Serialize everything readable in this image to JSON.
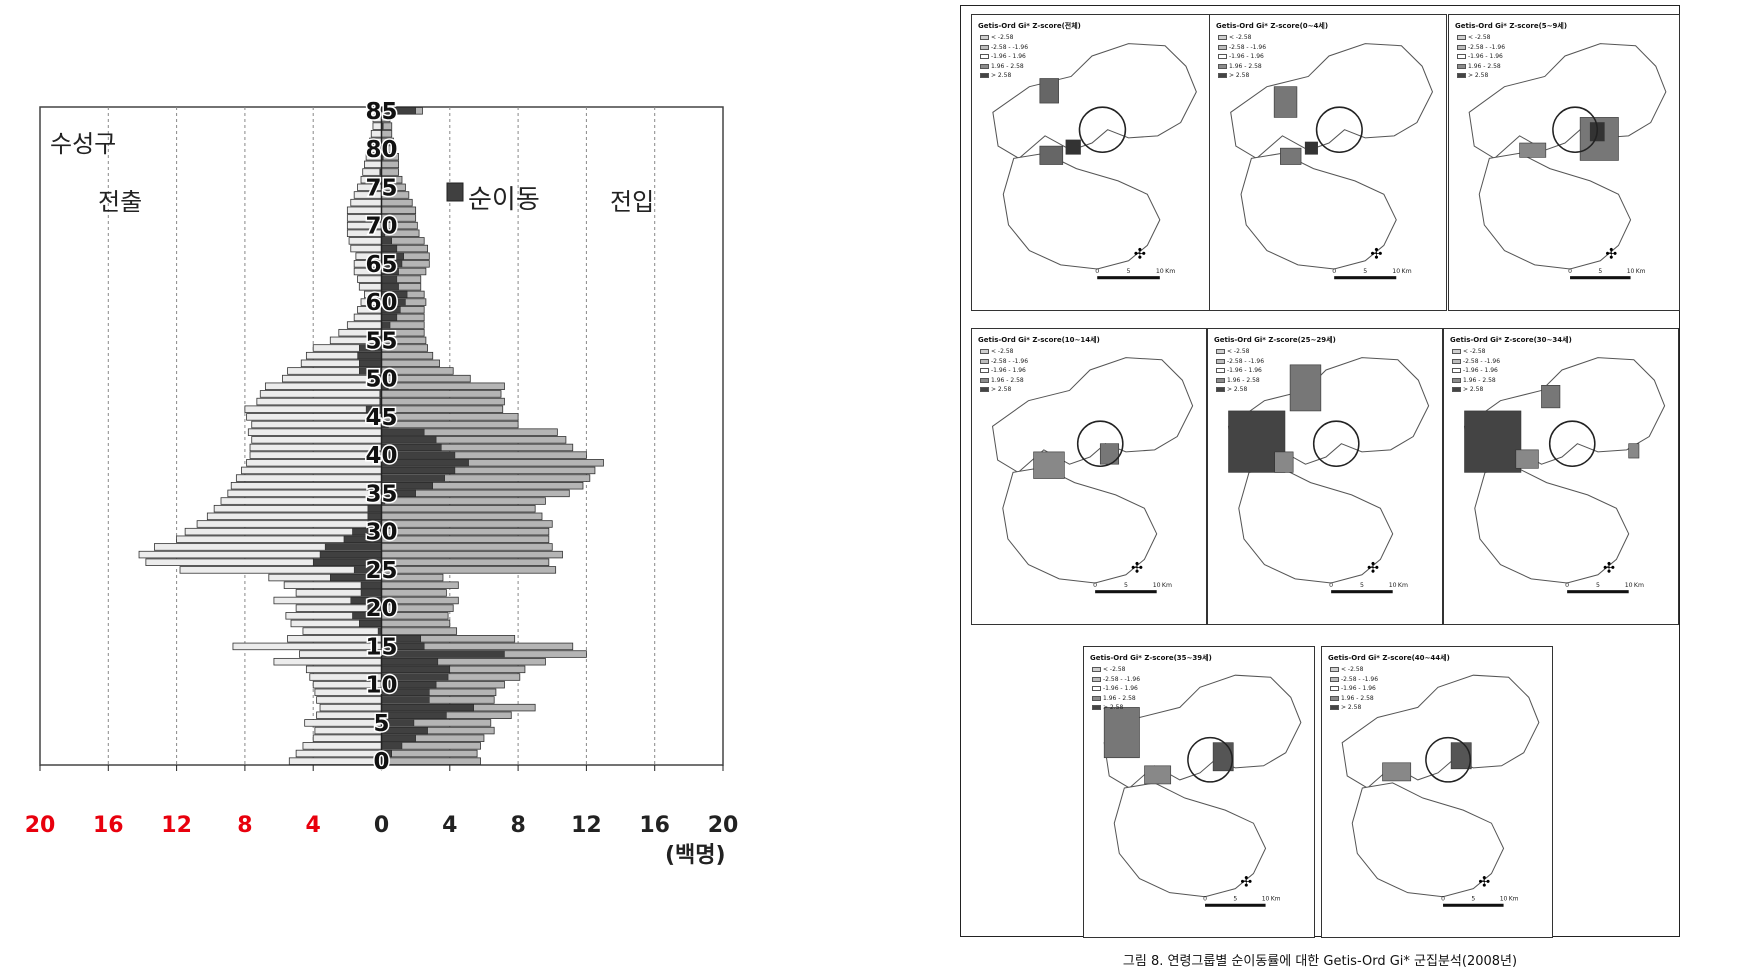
{
  "chart_data": {
    "type": "bar",
    "subtype": "population-pyramid",
    "title": "수성구",
    "left_label": "전출",
    "right_label": "전입",
    "legend": [
      "순이동"
    ],
    "unit": "(백명)",
    "xlim": [
      -20,
      20
    ],
    "x_ticks": [
      "20",
      "16",
      "12",
      "8",
      "4",
      "0",
      "4",
      "8",
      "12",
      "16",
      "20"
    ],
    "y_ticks": [
      "85",
      "80",
      "75",
      "70",
      "65",
      "60",
      "55",
      "50",
      "45",
      "40",
      "35",
      "30",
      "25",
      "20",
      "15",
      "10",
      "5",
      "0"
    ],
    "ages": [
      0,
      1,
      2,
      3,
      4,
      5,
      6,
      7,
      8,
      9,
      10,
      11,
      12,
      13,
      14,
      15,
      16,
      17,
      18,
      19,
      20,
      21,
      22,
      23,
      24,
      25,
      26,
      27,
      28,
      29,
      30,
      31,
      32,
      33,
      34,
      35,
      36,
      37,
      38,
      39,
      40,
      41,
      42,
      43,
      44,
      45,
      46,
      47,
      48,
      49,
      50,
      51,
      52,
      53,
      54,
      55,
      56,
      57,
      58,
      59,
      60,
      61,
      62,
      63,
      64,
      65,
      66,
      67,
      68,
      69,
      70,
      71,
      72,
      73,
      74,
      75,
      76,
      77,
      78,
      79,
      80,
      81,
      82,
      83,
      84,
      85
    ],
    "series": [
      {
        "name": "전출",
        "values": [
          5.4,
          5.0,
          4.6,
          4.0,
          3.9,
          4.5,
          3.8,
          3.6,
          3.8,
          3.9,
          4.0,
          4.2,
          4.4,
          6.3,
          4.8,
          8.7,
          5.5,
          4.6,
          5.3,
          5.6,
          5.0,
          6.3,
          5.0,
          5.7,
          6.6,
          11.8,
          13.8,
          14.2,
          13.3,
          12.0,
          11.5,
          10.8,
          10.2,
          9.8,
          9.4,
          9.0,
          8.8,
          8.5,
          8.2,
          7.9,
          7.7,
          7.7,
          7.6,
          7.8,
          7.6,
          7.9,
          8.0,
          7.3,
          7.1,
          6.8,
          5.8,
          5.5,
          4.7,
          4.4,
          4.0,
          3.0,
          2.5,
          2.0,
          1.6,
          1.4,
          1.2,
          1.0,
          1.3,
          1.4,
          1.6,
          1.6,
          1.5,
          1.8,
          1.9,
          2.0,
          2.0,
          2.0,
          2.0,
          1.8,
          1.6,
          1.4,
          1.2,
          1.1,
          1.0,
          0.9,
          0.8,
          0.7,
          0.6,
          0.5,
          0.5,
          0.4
        ]
      },
      {
        "name": "전입",
        "values": [
          5.8,
          5.6,
          5.8,
          6.0,
          6.6,
          6.4,
          7.6,
          9.0,
          6.6,
          6.7,
          7.2,
          8.1,
          8.4,
          9.6,
          12.0,
          11.2,
          7.8,
          4.4,
          4.0,
          3.9,
          4.2,
          4.5,
          3.8,
          4.5,
          3.6,
          10.2,
          9.8,
          10.6,
          10.0,
          9.8,
          9.8,
          10.0,
          9.4,
          9.0,
          9.6,
          11.0,
          11.8,
          12.2,
          12.5,
          13.0,
          12.0,
          11.2,
          10.8,
          10.3,
          8.0,
          8.0,
          7.1,
          7.2,
          7.0,
          7.2,
          5.2,
          4.2,
          3.4,
          3.0,
          2.7,
          2.6,
          2.5,
          2.5,
          2.5,
          2.5,
          2.6,
          2.5,
          2.3,
          2.3,
          2.6,
          2.8,
          2.8,
          2.7,
          2.5,
          2.2,
          2.1,
          2.0,
          2.0,
          1.8,
          1.6,
          1.4,
          1.2,
          1.0,
          1.0,
          1.0,
          0.8,
          0.7,
          0.6,
          0.6,
          0.5,
          2.4
        ]
      },
      {
        "name": "순이동",
        "values": [
          0.4,
          0.6,
          1.2,
          2.0,
          2.7,
          1.9,
          3.8,
          5.4,
          2.8,
          2.8,
          3.2,
          3.9,
          4.0,
          3.3,
          7.2,
          2.5,
          2.3,
          -0.2,
          -1.3,
          -1.7,
          -0.8,
          -1.8,
          -1.2,
          -1.2,
          -3.0,
          -1.6,
          -4.0,
          -3.6,
          -3.3,
          -2.2,
          -1.7,
          -0.8,
          -0.8,
          -0.8,
          0.2,
          2.0,
          3.0,
          3.7,
          4.3,
          5.1,
          4.3,
          3.5,
          3.2,
          2.5,
          0.4,
          0.1,
          -0.9,
          -0.1,
          -0.1,
          0.4,
          -0.6,
          -1.3,
          -1.3,
          -1.4,
          -1.3,
          -0.4,
          0,
          0.5,
          0.9,
          1.1,
          1.4,
          1.5,
          1.0,
          0.9,
          1.0,
          1.2,
          1.3,
          0.9,
          0.6,
          0.2,
          0.1,
          0,
          0,
          0,
          0,
          0,
          0,
          -0.1,
          0,
          0.1,
          0,
          0,
          0,
          0.1,
          0,
          2.0
        ]
      }
    ]
  },
  "figure": {
    "maps": [
      {
        "title": "Getis-Ord Gi* Z-score(전체)"
      },
      {
        "title": "Getis-Ord Gi* Z-score(0~4세)"
      },
      {
        "title": "Getis-Ord Gi* Z-score(5~9세)"
      },
      {
        "title": "Getis-Ord Gi* Z-score(10~14세)"
      },
      {
        "title": "Getis-Ord Gi* Z-score(25~29세)"
      },
      {
        "title": "Getis-Ord Gi* Z-score(30~34세)"
      },
      {
        "title": "Getis-Ord Gi* Z-score(35~39세)"
      },
      {
        "title": "Getis-Ord Gi* Z-score(40~44세)"
      }
    ],
    "legend_items": [
      "< -2.58",
      "-2.58 - -1.96",
      "-1.96 - 1.96",
      "1.96 - 2.58",
      "> 2.58"
    ],
    "legend_colors": [
      "#cfcfcf",
      "#bdbdbd",
      "#ffffff",
      "#8c8c8c",
      "#444444"
    ],
    "scale_labels": [
      "0",
      "5",
      "10",
      "Km"
    ],
    "caption": "그림 8. 연령그룹별 순이동률에 대한 Getis-Ord Gi* 군집분석(2008년)"
  },
  "colors": {
    "outflow": "#ececec",
    "inflow": "#b5b5b5",
    "net": "#404040",
    "red_tick": "#e8000d"
  }
}
